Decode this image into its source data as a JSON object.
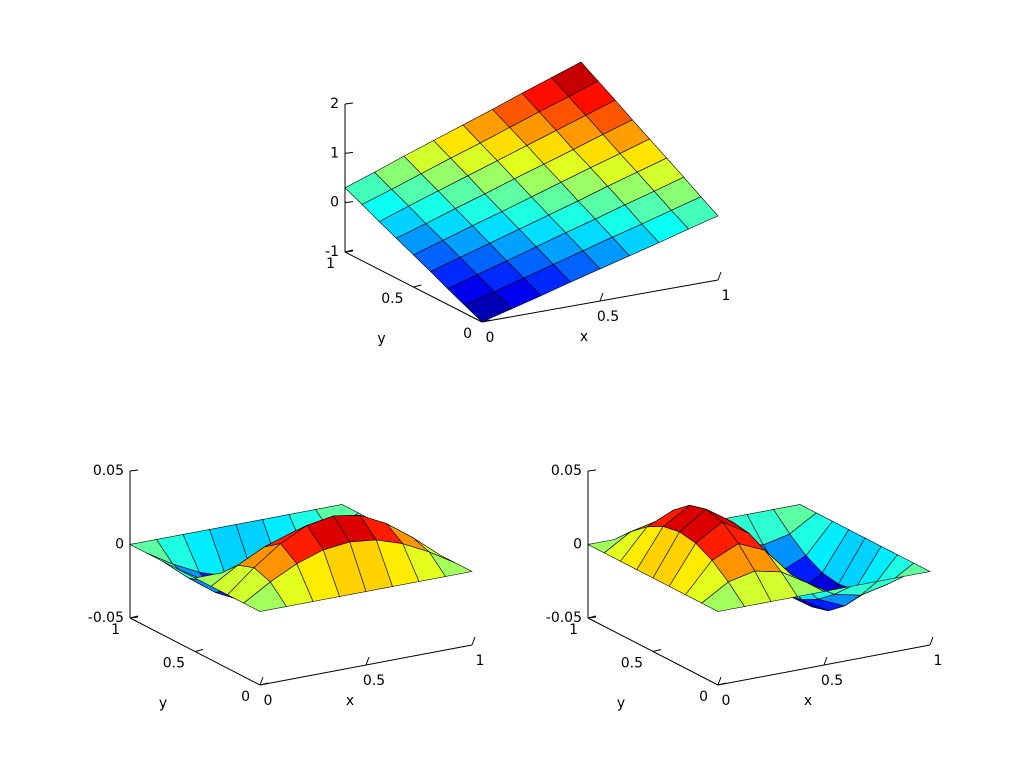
{
  "chart_data": [
    {
      "type": "surface",
      "xlabel": "x",
      "ylabel": "y",
      "colormap": "jet",
      "edgecolor": "#000000",
      "x": [
        0,
        0.125,
        0.25,
        0.375,
        0.5,
        0.625,
        0.75,
        0.875,
        1
      ],
      "y": [
        0,
        0.125,
        0.25,
        0.375,
        0.5,
        0.625,
        0.75,
        0.875,
        1
      ],
      "z": [
        [
          -1,
          -0.84,
          -0.68,
          -0.51,
          -0.35,
          -0.19,
          -0.03,
          0.14,
          0.3
        ],
        [
          -0.84,
          -0.67,
          -0.5,
          -0.33,
          -0.16,
          0.01,
          0.17,
          0.34,
          0.51
        ],
        [
          -0.68,
          -0.5,
          -0.33,
          -0.15,
          0.03,
          0.2,
          0.38,
          0.55,
          0.73
        ],
        [
          -0.51,
          -0.33,
          -0.15,
          0.03,
          0.21,
          0.39,
          0.58,
          0.76,
          0.94
        ],
        [
          -0.35,
          -0.16,
          0.03,
          0.21,
          0.4,
          0.59,
          0.78,
          0.96,
          1.15
        ],
        [
          -0.19,
          0,
          0.2,
          0.39,
          0.59,
          0.78,
          0.97,
          1.17,
          1.36
        ],
        [
          -0.03,
          0.18,
          0.38,
          0.58,
          0.78,
          0.98,
          1.18,
          1.38,
          1.58
        ],
        [
          0.14,
          0.34,
          0.55,
          0.76,
          0.96,
          1.17,
          1.38,
          1.58,
          1.79
        ],
        [
          0.3,
          0.51,
          0.73,
          0.94,
          1.15,
          1.36,
          1.58,
          1.79,
          2
        ]
      ],
      "xlim": [
        0,
        1
      ],
      "ylim": [
        0,
        1
      ],
      "zlim": [
        -1,
        2
      ],
      "xticks": [
        0,
        0.5,
        1
      ],
      "yticks": [
        0,
        0.5,
        1
      ],
      "zticks": [
        -1,
        0,
        1,
        2
      ]
    },
    {
      "type": "surface",
      "xlabel": "x",
      "ylabel": "y",
      "colormap": "jet",
      "edgecolor": "#000000",
      "x": [
        0,
        0.125,
        0.25,
        0.375,
        0.5,
        0.625,
        0.75,
        0.875,
        1
      ],
      "y": [
        0,
        0.125,
        0.25,
        0.375,
        0.5,
        0.625,
        0.75,
        0.875,
        1
      ],
      "z": [
        [
          0,
          0,
          0,
          0,
          0,
          0,
          0,
          0,
          0
        ],
        [
          0,
          0.011,
          0.02,
          0.026,
          0.028,
          0.026,
          0.02,
          0.011,
          0
        ],
        [
          0,
          0.015,
          0.028,
          0.037,
          0.04,
          0.037,
          0.028,
          0.015,
          0
        ],
        [
          0,
          0.011,
          0.02,
          0.026,
          0.028,
          0.026,
          0.02,
          0.011,
          0
        ],
        [
          0,
          0,
          0,
          0,
          0,
          0,
          0,
          0,
          0
        ],
        [
          0,
          -0.011,
          -0.02,
          -0.026,
          -0.028,
          -0.026,
          -0.02,
          -0.011,
          0
        ],
        [
          0,
          -0.015,
          -0.028,
          -0.037,
          -0.04,
          -0.037,
          -0.028,
          -0.015,
          0
        ],
        [
          0,
          -0.011,
          -0.02,
          -0.026,
          -0.028,
          -0.026,
          -0.02,
          -0.011,
          0
        ],
        [
          0,
          0,
          0,
          0,
          0,
          0,
          0,
          0,
          0
        ]
      ],
      "xlim": [
        0,
        1
      ],
      "ylim": [
        0,
        1
      ],
      "zlim": [
        -0.05,
        0.05
      ],
      "xticks": [
        0,
        0.5,
        1
      ],
      "yticks": [
        0,
        0.5,
        1
      ],
      "zticks": [
        -0.05,
        0,
        0.05
      ]
    },
    {
      "type": "surface",
      "xlabel": "x",
      "ylabel": "y",
      "colormap": "jet",
      "edgecolor": "#000000",
      "x": [
        0,
        0.125,
        0.25,
        0.375,
        0.5,
        0.625,
        0.75,
        0.875,
        1
      ],
      "y": [
        0,
        0.125,
        0.25,
        0.375,
        0.5,
        0.625,
        0.75,
        0.875,
        1
      ],
      "z": [
        [
          0,
          0,
          0,
          0,
          0,
          0,
          0,
          0,
          0
        ],
        [
          0,
          0.011,
          0.015,
          0.011,
          0,
          -0.011,
          -0.015,
          -0.011,
          0
        ],
        [
          0,
          0.02,
          0.028,
          0.02,
          0,
          -0.02,
          -0.028,
          -0.02,
          0
        ],
        [
          0,
          0.026,
          0.037,
          0.026,
          0,
          -0.026,
          -0.037,
          -0.026,
          0
        ],
        [
          0,
          0.028,
          0.04,
          0.028,
          0,
          -0.028,
          -0.04,
          -0.028,
          0
        ],
        [
          0,
          0.026,
          0.037,
          0.026,
          0,
          -0.026,
          -0.037,
          -0.026,
          0
        ],
        [
          0,
          0.02,
          0.028,
          0.02,
          0,
          -0.02,
          -0.028,
          -0.02,
          0
        ],
        [
          0,
          0.011,
          0.015,
          0.011,
          0,
          -0.011,
          -0.015,
          -0.011,
          0
        ],
        [
          0,
          0,
          0,
          0,
          0,
          0,
          0,
          0,
          0
        ]
      ],
      "xlim": [
        0,
        1
      ],
      "ylim": [
        0,
        1
      ],
      "zlim": [
        -0.05,
        0.05
      ],
      "xticks": [
        0,
        0.5,
        1
      ],
      "yticks": [
        0,
        0.5,
        1
      ],
      "zticks": [
        -0.05,
        0,
        0.05
      ]
    }
  ]
}
